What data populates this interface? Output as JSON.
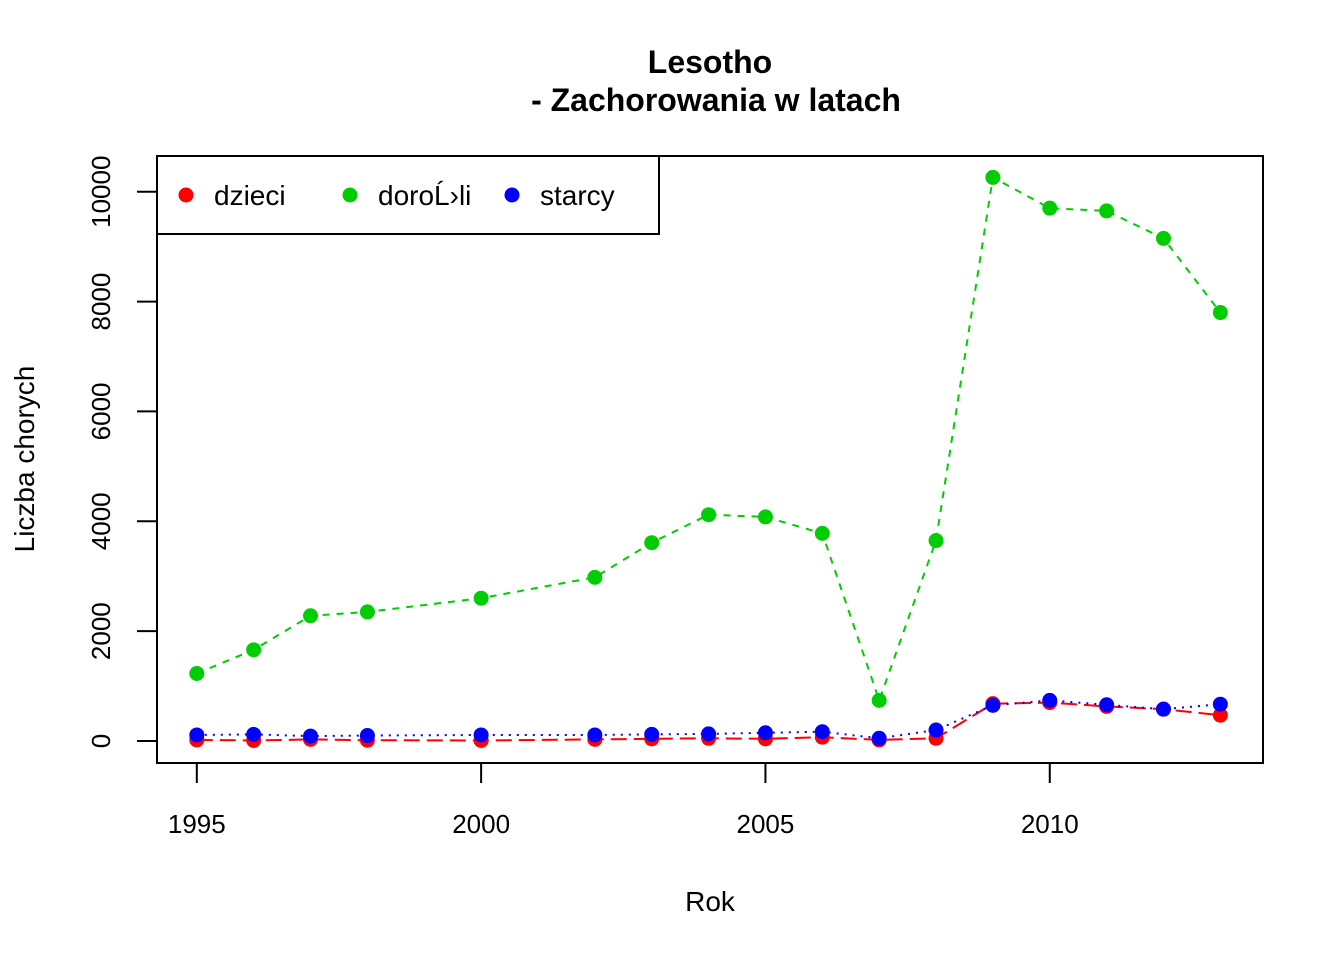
{
  "chart_data": {
    "type": "line",
    "title_line1": "Lesotho",
    "title_line2": "- Zachorowania w latach",
    "xlabel": "Rok",
    "ylabel": "Liczba chorych",
    "xlim": [
      1994.3,
      2013.75
    ],
    "ylim": [
      -400,
      10650
    ],
    "x_ticks": [
      "1995",
      "2000",
      "2005",
      "2010"
    ],
    "y_ticks": [
      "0",
      "2000",
      "4000",
      "6000",
      "8000",
      "10000"
    ],
    "x_tick_values": [
      1995,
      2000,
      2005,
      2010
    ],
    "y_tick_values": [
      0,
      2000,
      4000,
      6000,
      8000,
      10000
    ],
    "legend_position": "top-left",
    "x": [
      1995,
      1996,
      1997,
      1998,
      2000,
      2002,
      2003,
      2004,
      2005,
      2006,
      2007,
      2008,
      2009,
      2010,
      2011,
      2012,
      2013
    ],
    "series": [
      {
        "name": "dzieci",
        "color": "#ff0000",
        "line_style": "dashed-long",
        "values": [
          20,
          10,
          30,
          15,
          10,
          30,
          40,
          50,
          40,
          70,
          20,
          50,
          680,
          700,
          630,
          580,
          470
        ]
      },
      {
        "name": "doroĹ›li",
        "color": "#00cd00",
        "line_style": "dashed",
        "values": [
          1230,
          1660,
          2280,
          2350,
          2600,
          2980,
          3610,
          4120,
          4080,
          3780,
          740,
          3650,
          10260,
          9700,
          9650,
          9150,
          7800
        ]
      },
      {
        "name": "starcy",
        "color": "#0000ff",
        "line_style": "dotted",
        "values": [
          110,
          120,
          90,
          100,
          110,
          110,
          120,
          130,
          150,
          170,
          50,
          200,
          650,
          740,
          660,
          580,
          670
        ]
      }
    ]
  }
}
